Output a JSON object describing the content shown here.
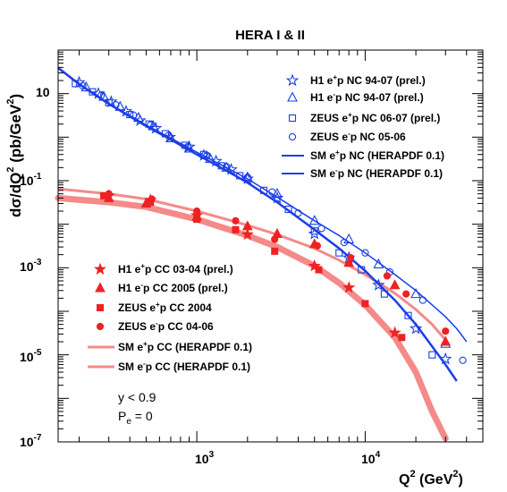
{
  "chart_data": {
    "type": "scatter",
    "title": "HERA I & II",
    "xlabel_main": "Q",
    "xlabel_sup": "2",
    "xlabel_unit_open": " (GeV",
    "xlabel_unit_sup": "2",
    "xlabel_unit_close": ")",
    "ylabel_main": "dσ/dQ",
    "ylabel_sup": "2",
    "ylabel_unit_open": " (pb/GeV",
    "ylabel_unit_sup": "2",
    "ylabel_unit_close": ")",
    "x_scale": "log",
    "y_scale": "log",
    "xlim": [
      150,
      50000
    ],
    "ylim": [
      1e-07,
      100
    ],
    "x_ticks": [
      {
        "base": "10",
        "exp": "3",
        "value": 1000
      },
      {
        "base": "10",
        "exp": "4",
        "value": 10000
      }
    ],
    "y_ticks": [
      {
        "base": "10",
        "exp": "-7",
        "value": 1e-07
      },
      {
        "base": "10",
        "exp": "-5",
        "value": 1e-05
      },
      {
        "base": "10",
        "exp": "-3",
        "value": 0.001
      },
      {
        "base": "10",
        "exp": "-1",
        "value": 0.1
      },
      {
        "base": "10",
        "exp": "",
        "value": 10
      }
    ],
    "nc_color": "#1a3fe6",
    "cc_color": "#ee2222",
    "cc_band_color": "#f58a8a",
    "legend_nc": [
      {
        "pre": "H1 e",
        "sup": "+",
        "post": "p NC 94-07 (prel.)",
        "marker": "star-open"
      },
      {
        "pre": "H1 e",
        "sup": "-",
        "post": "p NC 94-07 (prel.)",
        "marker": "triangle-open"
      },
      {
        "pre": "ZEUS e",
        "sup": "+",
        "post": "p NC 06-07 (prel.)",
        "marker": "square-open"
      },
      {
        "pre": "ZEUS e",
        "sup": "-",
        "post": "p NC 05-06",
        "marker": "circle-open"
      },
      {
        "pre": "SM e",
        "sup": "+",
        "post": "p NC (HERAPDF 0.1)",
        "marker": "line"
      },
      {
        "pre": "SM e",
        "sup": "-",
        "post": "p NC (HERAPDF 0.1)",
        "marker": "line"
      }
    ],
    "legend_cc": [
      {
        "pre": "H1 e",
        "sup": "+",
        "post": "p CC 03-04 (prel.)",
        "marker": "star"
      },
      {
        "pre": "H1 e",
        "sup": "-",
        "post": "p CC 2005 (prel.)",
        "marker": "triangle"
      },
      {
        "pre": "ZEUS e",
        "sup": "+",
        "post": "p CC 2004",
        "marker": "square"
      },
      {
        "pre": "ZEUS e",
        "sup": "-",
        "post": "p CC 04-06",
        "marker": "circle"
      },
      {
        "pre": "SM e",
        "sup": "+",
        "post": "p CC (HERAPDF 0.1)",
        "marker": "band"
      },
      {
        "pre": "SM e",
        "sup": "-",
        "post": "p CC (HERAPDF 0.1)",
        "marker": "band"
      }
    ],
    "cut_text": "y < 0.9",
    "pol_text_main": "P",
    "pol_text_sub": "e",
    "pol_text_rest": " = 0",
    "nc_curve_em": [
      [
        150,
        40
      ],
      [
        200,
        17
      ],
      [
        300,
        6
      ],
      [
        500,
        1.9
      ],
      [
        700,
        0.95
      ],
      [
        1000,
        0.45
      ],
      [
        1500,
        0.2
      ],
      [
        2000,
        0.11
      ],
      [
        3000,
        0.042
      ],
      [
        5000,
        0.012
      ],
      [
        7000,
        0.0055
      ],
      [
        10000,
        0.0022
      ],
      [
        15000,
        0.0007
      ],
      [
        20000,
        0.0003
      ],
      [
        30000,
        7.5e-05
      ],
      [
        35000,
        4e-05
      ],
      [
        40000,
        2e-05
      ]
    ],
    "nc_curve_ep": [
      [
        150,
        39
      ],
      [
        200,
        16.5
      ],
      [
        300,
        5.8
      ],
      [
        500,
        1.8
      ],
      [
        700,
        0.88
      ],
      [
        1000,
        0.4
      ],
      [
        1500,
        0.17
      ],
      [
        2000,
        0.09
      ],
      [
        3000,
        0.032
      ],
      [
        5000,
        0.0075
      ],
      [
        7000,
        0.0028
      ],
      [
        10000,
        0.00085
      ],
      [
        15000,
        0.00018
      ],
      [
        20000,
        5e-05
      ],
      [
        30000,
        6e-06
      ],
      [
        35000,
        2.5e-06
      ]
    ],
    "cc_curve_em": [
      [
        150,
        0.065
      ],
      [
        300,
        0.05
      ],
      [
        500,
        0.038
      ],
      [
        1000,
        0.02
      ],
      [
        2000,
        0.0095
      ],
      [
        3000,
        0.0058
      ],
      [
        5000,
        0.0028
      ],
      [
        7000,
        0.0015
      ],
      [
        10000,
        0.0007
      ],
      [
        15000,
        0.00026
      ],
      [
        20000,
        0.00011
      ],
      [
        25000,
        5e-05
      ],
      [
        30000,
        2.2e-05
      ]
    ],
    "cc_curve_ep": [
      [
        150,
        0.04
      ],
      [
        300,
        0.032
      ],
      [
        500,
        0.025
      ],
      [
        1000,
        0.013
      ],
      [
        2000,
        0.0055
      ],
      [
        3000,
        0.003
      ],
      [
        5000,
        0.0011
      ],
      [
        7000,
        0.00045
      ],
      [
        10000,
        0.00014
      ],
      [
        15000,
        2.5e-05
      ],
      [
        20000,
        4e-06
      ],
      [
        25000,
        5e-07
      ],
      [
        30000,
        1.2e-07
      ]
    ],
    "h1_ep_nc": [
      [
        200,
        18
      ],
      [
        260,
        10
      ],
      [
        310,
        6.5
      ],
      [
        380,
        3.9
      ],
      [
        460,
        2.4
      ],
      [
        570,
        1.6
      ],
      [
        690,
        1.0
      ],
      [
        900,
        0.6
      ],
      [
        1100,
        0.38
      ],
      [
        1300,
        0.28
      ],
      [
        1600,
        0.18
      ],
      [
        2000,
        0.11
      ],
      [
        3000,
        0.04
      ],
      [
        5000,
        0.006
      ],
      [
        8000,
        0.0017
      ],
      [
        12000,
        0.0004
      ],
      [
        20000,
        4e-05
      ],
      [
        30000,
        8e-06
      ]
    ],
    "h1_em_nc": [
      [
        220,
        14
      ],
      [
        280,
        8.5
      ],
      [
        350,
        5
      ],
      [
        450,
        2.8
      ],
      [
        550,
        1.8
      ],
      [
        700,
        0.95
      ],
      [
        900,
        0.55
      ],
      [
        1200,
        0.32
      ],
      [
        1500,
        0.2
      ],
      [
        2000,
        0.12
      ],
      [
        3000,
        0.05
      ],
      [
        5000,
        0.012
      ],
      [
        8000,
        0.0045
      ],
      [
        12000,
        0.0012
      ],
      [
        20000,
        0.00025
      ],
      [
        30000,
        1.8e-05
      ]
    ],
    "zeus_ep_nc": [
      [
        190,
        17
      ],
      [
        240,
        11
      ],
      [
        300,
        6.2
      ],
      [
        400,
        3.3
      ],
      [
        520,
        2.0
      ],
      [
        650,
        1.2
      ],
      [
        850,
        0.65
      ],
      [
        1100,
        0.4
      ],
      [
        1400,
        0.22
      ],
      [
        1800,
        0.13
      ],
      [
        2500,
        0.06
      ],
      [
        3500,
        0.022
      ],
      [
        5000,
        0.007
      ],
      [
        7000,
        0.0022
      ],
      [
        9500,
        0.0009
      ],
      [
        13000,
        0.00025
      ],
      [
        18000,
        8e-05
      ],
      [
        25000,
        1e-05
      ]
    ],
    "zeus_em_nc": [
      [
        210,
        15
      ],
      [
        270,
        9
      ],
      [
        330,
        5.5
      ],
      [
        420,
        3.2
      ],
      [
        530,
        1.9
      ],
      [
        680,
        1.1
      ],
      [
        880,
        0.6
      ],
      [
        1150,
        0.38
      ],
      [
        1500,
        0.21
      ],
      [
        2000,
        0.12
      ],
      [
        2800,
        0.055
      ],
      [
        4000,
        0.018
      ],
      [
        5500,
        0.008
      ],
      [
        7500,
        0.0038
      ],
      [
        10000,
        0.0022
      ],
      [
        14000,
        0.0008
      ],
      [
        22000,
        0.00018
      ],
      [
        38000,
        7.5e-06
      ]
    ],
    "h1_ep_cc": [
      [
        300,
        0.045
      ],
      [
        530,
        0.036
      ],
      [
        1000,
        0.016
      ],
      [
        2000,
        0.0058
      ],
      [
        5000,
        0.0011
      ],
      [
        8000,
        0.00035
      ],
      [
        15000,
        3.2e-05
      ]
    ],
    "h1_em_cc": [
      [
        300,
        0.04
      ],
      [
        500,
        0.03
      ],
      [
        1000,
        0.015
      ],
      [
        2000,
        0.009
      ],
      [
        3000,
        0.006
      ],
      [
        5000,
        0.0035
      ],
      [
        8000,
        0.0013
      ],
      [
        15000,
        0.0004
      ],
      [
        30000,
        2e-05
      ]
    ],
    "zeus_ep_cc": [
      [
        280,
        0.045
      ],
      [
        530,
        0.032
      ],
      [
        1000,
        0.013
      ],
      [
        1700,
        0.0075
      ],
      [
        2900,
        0.0024
      ],
      [
        5300,
        0.0009
      ],
      [
        10000,
        0.00015
      ],
      [
        16500,
        2.5e-05
      ]
    ],
    "zeus_em_cc": [
      [
        300,
        0.05
      ],
      [
        540,
        0.038
      ],
      [
        1000,
        0.02
      ],
      [
        1700,
        0.012
      ],
      [
        2900,
        0.0045
      ],
      [
        5200,
        0.0032
      ],
      [
        8200,
        0.0017
      ],
      [
        13500,
        0.00065
      ],
      [
        17500,
        0.00025
      ],
      [
        30000,
        3.5e-05
      ]
    ]
  }
}
